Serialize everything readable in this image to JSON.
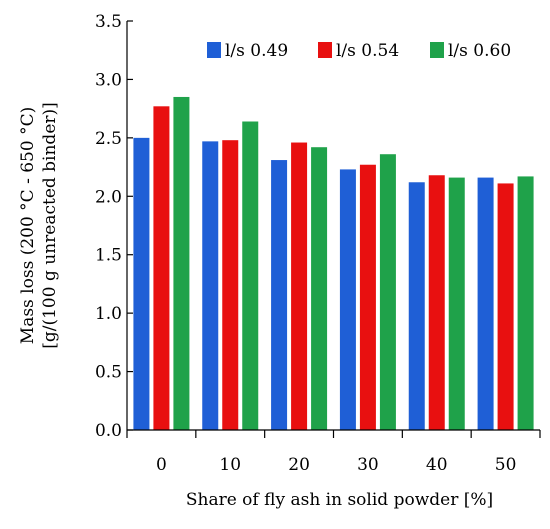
{
  "chart_data": {
    "type": "bar",
    "title": "",
    "xlabel": "Share of fly ash in solid powder [%]",
    "ylabel_lines": [
      "Mass loss (200 °C - 650 °C)",
      "[g/(100 g unreacted binder)]"
    ],
    "categories": [
      "0",
      "10",
      "20",
      "30",
      "40",
      "50"
    ],
    "series": [
      {
        "name": "l/s 0.49",
        "color": "#1f5fd6",
        "values": [
          2.5,
          2.47,
          2.31,
          2.23,
          2.12,
          2.16
        ]
      },
      {
        "name": "l/s 0.54",
        "color": "#e81010",
        "values": [
          2.77,
          2.48,
          2.46,
          2.27,
          2.18,
          2.11
        ]
      },
      {
        "name": "l/s 0.60",
        "color": "#1fa24a",
        "values": [
          2.85,
          2.64,
          2.42,
          2.36,
          2.16,
          2.17
        ]
      }
    ],
    "ylim": [
      0,
      3.5
    ],
    "yticks": [
      "0.0",
      "0.5",
      "1.0",
      "1.5",
      "2.0",
      "2.5",
      "3.0",
      "3.5"
    ],
    "grid": false,
    "legend_position": "top-right"
  }
}
